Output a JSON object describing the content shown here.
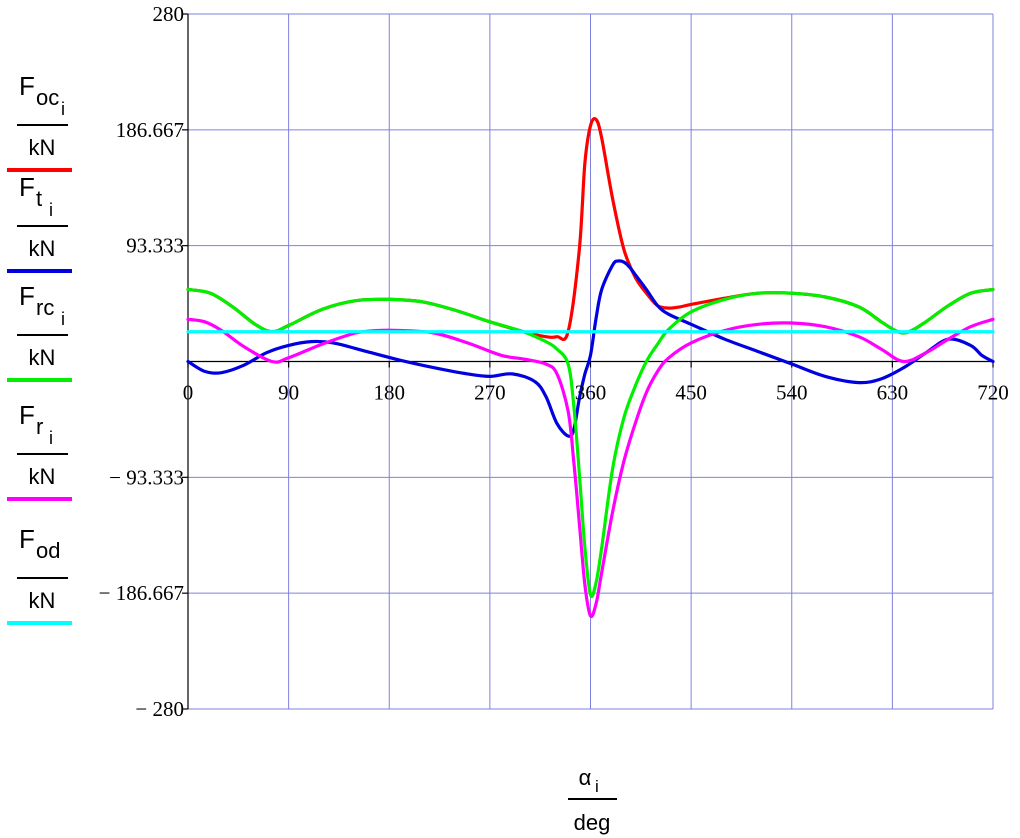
{
  "chart_data": {
    "type": "line",
    "xlim": [
      0,
      720
    ],
    "ylim": [
      -280,
      280
    ],
    "xticks": [
      0,
      90,
      180,
      270,
      360,
      450,
      540,
      630,
      720
    ],
    "yticks": [
      280,
      186.667,
      93.333,
      -93.333,
      -186.667,
      -280
    ],
    "ytick_labels": [
      "280",
      "186.667",
      "93.333",
      "− 93.333",
      "− 186.667",
      "− 280"
    ],
    "grid": true,
    "grid_color": "#8080e0",
    "legend_position": "left",
    "xlabel": {
      "num": "α",
      "num_sub": "i",
      "den": "deg"
    },
    "series": [
      {
        "name": "F",
        "sub": "oc",
        "subsub": "i",
        "den": "kN",
        "color": "#ff0000",
        "x": [
          0,
          20,
          40,
          60,
          75,
          90,
          120,
          150,
          180,
          210,
          240,
          270,
          300,
          320,
          330,
          340,
          350,
          355,
          360,
          365,
          370,
          380,
          390,
          400,
          410,
          420,
          430,
          440,
          450,
          480,
          510,
          540,
          570,
          600,
          620,
          635,
          645,
          660,
          680,
          700,
          720
        ],
        "y": [
          58,
          55,
          44,
          30,
          24,
          29,
          42,
          49,
          50,
          48,
          41,
          32,
          24,
          20,
          20,
          24,
          90,
          160,
          190,
          195,
          180,
          130,
          90,
          68,
          55,
          45,
          43,
          44,
          46,
          51,
          55,
          55,
          52,
          44,
          32,
          24,
          24,
          32,
          45,
          55,
          58
        ]
      },
      {
        "name": "F",
        "sub": "t",
        "subsub": "i",
        "den": "kN",
        "color": "#0000e0",
        "x": [
          0,
          15,
          30,
          50,
          70,
          90,
          110,
          130,
          160,
          190,
          220,
          250,
          270,
          290,
          310,
          320,
          330,
          340,
          345,
          350,
          355,
          360,
          365,
          370,
          380,
          385,
          390,
          395,
          400,
          410,
          420,
          430,
          450,
          480,
          510,
          540,
          570,
          600,
          620,
          640,
          660,
          680,
          700,
          710,
          720
        ],
        "y": [
          0,
          -8,
          -9,
          -3,
          7,
          13,
          16,
          15,
          8,
          1,
          -5,
          -10,
          -12,
          -10,
          -16,
          -28,
          -50,
          -60,
          -55,
          -30,
          -10,
          5,
          35,
          58,
          78,
          81,
          80,
          76,
          70,
          58,
          45,
          38,
          30,
          18,
          8,
          -2,
          -12,
          -17,
          -14,
          -5,
          7,
          18,
          13,
          5,
          0
        ]
      },
      {
        "name": "F",
        "sub": "rc",
        "subsub": "i",
        "den": "kN",
        "color": "#00f000",
        "x": [
          0,
          20,
          40,
          60,
          75,
          90,
          120,
          150,
          180,
          210,
          240,
          270,
          300,
          320,
          330,
          340,
          345,
          350,
          355,
          360,
          365,
          370,
          380,
          390,
          400,
          410,
          420,
          430,
          450,
          480,
          510,
          540,
          570,
          600,
          620,
          635,
          645,
          660,
          680,
          700,
          720
        ],
        "y": [
          58,
          55,
          44,
          30,
          24,
          29,
          42,
          49,
          50,
          48,
          41,
          32,
          24,
          16,
          10,
          -2,
          -35,
          -90,
          -150,
          -188,
          -178,
          -150,
          -85,
          -45,
          -20,
          0,
          14,
          26,
          40,
          50,
          55,
          55,
          52,
          44,
          32,
          24,
          24,
          32,
          45,
          55,
          58
        ]
      },
      {
        "name": "F",
        "sub": "r",
        "subsub": "i",
        "den": "kN",
        "color": "#ff00ff",
        "x": [
          0,
          15,
          30,
          50,
          75,
          90,
          120,
          150,
          170,
          190,
          220,
          250,
          280,
          300,
          320,
          330,
          340,
          345,
          350,
          355,
          360,
          365,
          370,
          380,
          390,
          400,
          410,
          420,
          430,
          450,
          480,
          510,
          540,
          570,
          600,
          620,
          640,
          660,
          680,
          700,
          720
        ],
        "y": [
          34,
          32,
          25,
          12,
          0,
          3,
          14,
          23,
          25,
          25,
          23,
          15,
          5,
          2,
          -2,
          -10,
          -40,
          -80,
          -130,
          -180,
          -205,
          -195,
          -170,
          -120,
          -80,
          -50,
          -25,
          -8,
          3,
          15,
          25,
          30,
          31,
          28,
          20,
          10,
          0,
          7,
          18,
          28,
          34
        ]
      },
      {
        "name": "F",
        "sub": "od",
        "subsub": "",
        "den": "kN",
        "color": "#00ffff",
        "x": [
          0,
          720
        ],
        "y": [
          24,
          24
        ]
      }
    ]
  }
}
